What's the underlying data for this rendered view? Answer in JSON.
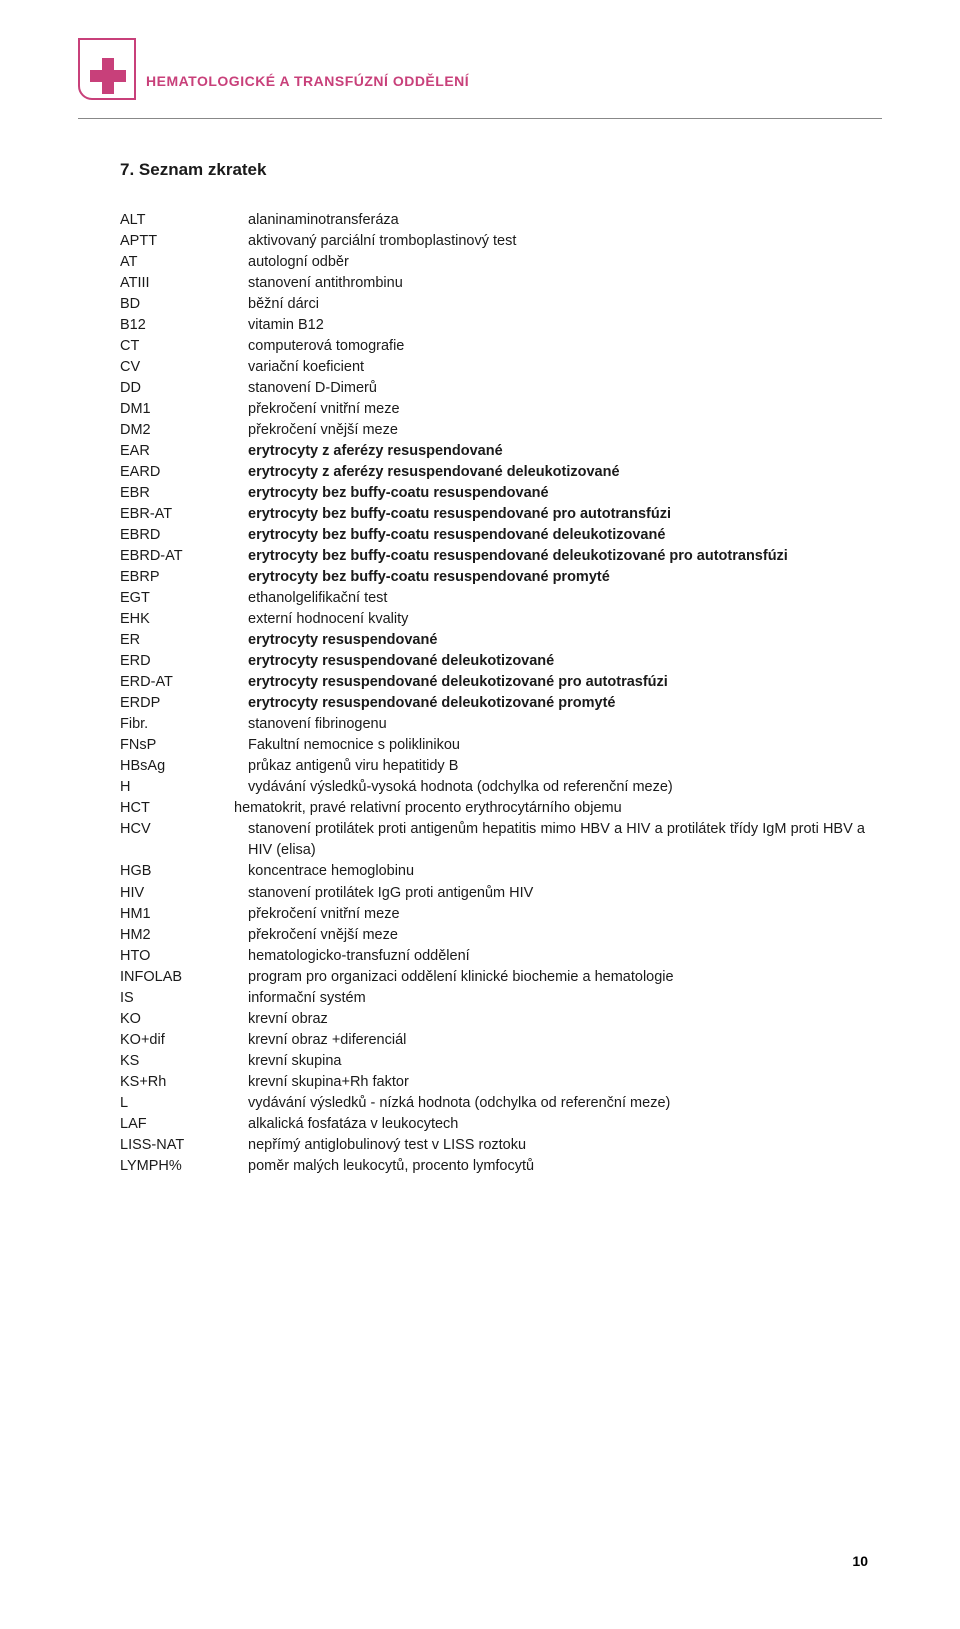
{
  "header": {
    "department": "HEMATOLOGICKÉ A TRANSFÚZNÍ ODDĚLENÍ",
    "accent_color": "#c8407a"
  },
  "section_title": "7. Seznam zkratek",
  "rows": [
    {
      "abbr": "ALT",
      "def": "alaninaminotransferáza",
      "bold": false
    },
    {
      "abbr": "APTT",
      "def": "aktivovaný parciální tromboplastinový test",
      "bold": false
    },
    {
      "abbr": "AT",
      "def": "autologní odběr",
      "bold": false
    },
    {
      "abbr": "ATIII",
      "def": "stanovení antithrombinu",
      "bold": false
    },
    {
      "abbr": "BD",
      "def": "běžní dárci",
      "bold": false
    },
    {
      "abbr": "B12",
      "def": "vitamin B12",
      "bold": false
    },
    {
      "abbr": "CT",
      "def": "computerová tomografie",
      "bold": false
    },
    {
      "abbr": "CV",
      "def": "variační koeficient",
      "bold": false
    },
    {
      "abbr": "DD",
      "def": "stanovení D-Dimerů",
      "bold": false
    },
    {
      "abbr": "DM1",
      "def": "překročení vnitřní meze",
      "bold": false
    },
    {
      "abbr": "DM2",
      "def": "překročení vnější meze",
      "bold": false
    },
    {
      "abbr": "EAR",
      "def": "erytrocyty z aferézy resuspendované",
      "bold": true
    },
    {
      "abbr": "EARD",
      "def": "erytrocyty z aferézy resuspendované deleukotizované",
      "bold": true
    },
    {
      "abbr": "EBR",
      "def": "erytrocyty bez buffy-coatu resuspendované",
      "bold": true
    },
    {
      "abbr": "EBR-AT",
      "def": "erytrocyty bez buffy-coatu resuspendované pro autotransfúzi",
      "bold": true
    },
    {
      "abbr": "EBRD",
      "def": "erytrocyty bez buffy-coatu resuspendované deleukotizované",
      "bold": true
    },
    {
      "abbr": "EBRD-AT",
      "def": "erytrocyty bez buffy-coatu resuspendované deleukotizované pro autotransfúzi",
      "bold": true,
      "justify": true
    },
    {
      "abbr": "EBRP",
      "def": "erytrocyty bez buffy-coatu resuspendované promyté",
      "bold": true
    },
    {
      "abbr": "EGT",
      "def": "ethanolgelifikační test",
      "bold": false
    },
    {
      "abbr": "EHK",
      "def": "externí hodnocení kvality",
      "bold": false
    },
    {
      "abbr": "ER",
      "def": "erytrocyty resuspendované",
      "bold": true
    },
    {
      "abbr": "ERD",
      "def": "erytrocyty resuspendované deleukotizované",
      "bold": true
    },
    {
      "abbr": "ERD-AT",
      "def": "erytrocyty resuspendované deleukotizované pro autotrasfúzi",
      "bold": true
    },
    {
      "abbr": "ERDP",
      "def": "erytrocyty resuspendované deleukotizované promyté",
      "bold": true
    },
    {
      "abbr": "Fibr.",
      "def": "stanovení fibrinogenu",
      "bold": false
    },
    {
      "abbr": "FNsP",
      "def": "Fakultní nemocnice s poliklinikou",
      "bold": false
    },
    {
      "abbr": "HBsAg",
      "def": "průkaz antigenů viru hepatitidy B",
      "bold": false
    },
    {
      "abbr": "H",
      "def": "vydávání výsledků-vysoká hodnota (odchylka od referenční meze)",
      "bold": false
    },
    {
      "abbr": "HCT",
      "def": "hematokrit, pravé relativní procento erythrocytárního objemu",
      "bold": false,
      "hct": true
    },
    {
      "abbr": "HCV",
      "def": "stanovení protilátek proti antigenům hepatitis mimo HBV a HIV a protilátek třídy IgM proti HBV a HIV (elisa)",
      "bold": false,
      "justify": true
    },
    {
      "abbr": "HGB",
      "def": "koncentrace hemoglobinu",
      "bold": false
    },
    {
      "abbr": "HIV",
      "def": "stanovení protilátek IgG proti antigenům HIV",
      "bold": false
    },
    {
      "abbr": "HM1",
      "def": "překročení vnitřní meze",
      "bold": false
    },
    {
      "abbr": "HM2",
      "def": "překročení vnější meze",
      "bold": false
    },
    {
      "abbr": "HTO",
      "def": "hematologicko-transfuzní oddělení",
      "bold": false
    },
    {
      "abbr": "INFOLAB",
      "def": "program pro organizaci oddělení klinické biochemie a hematologie",
      "bold": false
    },
    {
      "abbr": "IS",
      "def": "informační systém",
      "bold": false
    },
    {
      "abbr": "KO",
      "def": "krevní obraz",
      "bold": false
    },
    {
      "abbr": "KO+dif",
      "def": "krevní obraz +diferenciál",
      "bold": false
    },
    {
      "abbr": "KS",
      "def": "krevní skupina",
      "bold": false
    },
    {
      "abbr": "KS+Rh",
      "def": "krevní skupina+Rh faktor",
      "bold": false
    },
    {
      "abbr": "L",
      "def": "vydávání výsledků - nízká hodnota (odchylka od referenční meze)",
      "bold": false
    },
    {
      "abbr": "LAF",
      "def": "alkalická fosfatáza v leukocytech",
      "bold": false
    },
    {
      "abbr": "LISS-NAT",
      "def": "nepřímý antiglobulinový test v LISS roztoku",
      "bold": false
    },
    {
      "abbr": "LYMPH%",
      "def": "poměr malých leukocytů, procento lymfocytů",
      "bold": false
    }
  ],
  "page_number": "10"
}
